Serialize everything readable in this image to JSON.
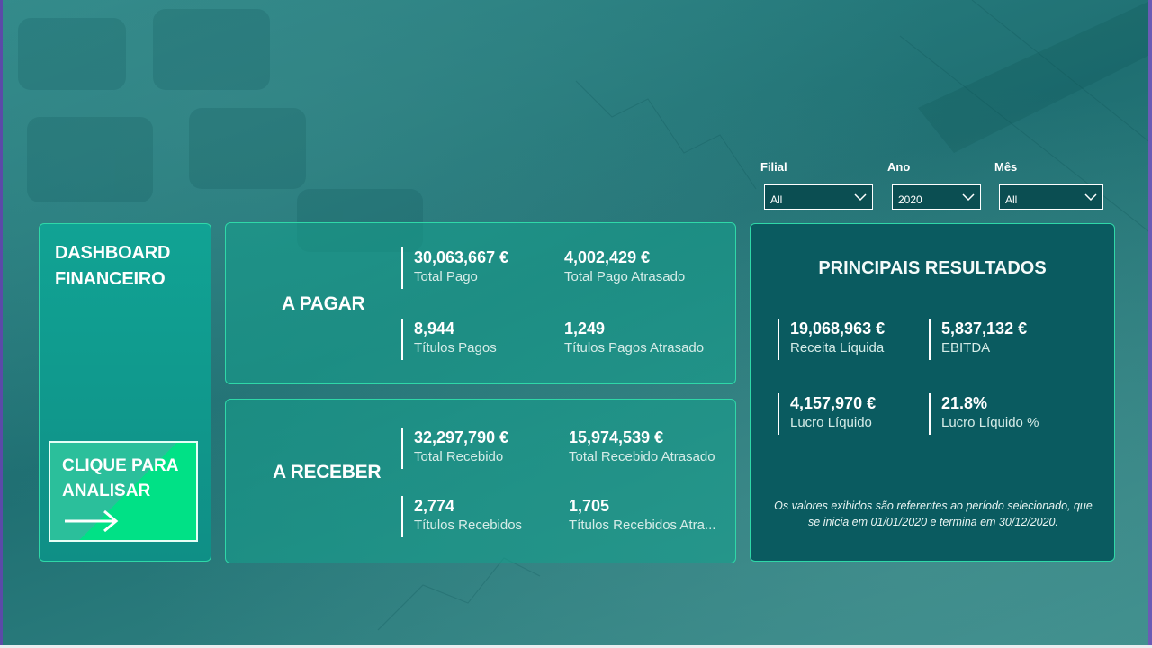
{
  "dashboard": {
    "title_line1": "DASHBOARD",
    "title_line2": "FINANCEIRO"
  },
  "cta": {
    "line1": "CLIQUE PARA",
    "line2": "ANALISAR",
    "icon": "arrow-right-icon"
  },
  "pagar": {
    "label": "A PAGAR",
    "kpis": [
      {
        "value": "30,063,667 €",
        "label": "Total Pago"
      },
      {
        "value": "4,002,429 €",
        "label": "Total Pago Atrasado"
      },
      {
        "value": "8,944",
        "label": "Títulos Pagos"
      },
      {
        "value": "1,249",
        "label": "Títulos Pagos Atrasado"
      }
    ]
  },
  "receber": {
    "label": "A RECEBER",
    "kpis": [
      {
        "value": "32,297,790 €",
        "label": "Total Recebido"
      },
      {
        "value": "15,974,539 €",
        "label": "Total Recebido Atrasado"
      },
      {
        "value": "2,774",
        "label": "Títulos Recebidos"
      },
      {
        "value": "1,705",
        "label": "Títulos Recebidos Atra..."
      }
    ]
  },
  "filters": [
    {
      "label": "Filial",
      "value": "All"
    },
    {
      "label": "Ano",
      "value": "2020"
    },
    {
      "label": "Mês",
      "value": "All"
    }
  ],
  "results": {
    "title": "PRINCIPAIS RESULTADOS",
    "kpis": [
      {
        "value": "19,068,963 €",
        "label": "Receita Líquida"
      },
      {
        "value": "5,837,132 €",
        "label": "EBITDA"
      },
      {
        "value": "4,157,970 €",
        "label": "Lucro Líquido"
      },
      {
        "value": "21.8%",
        "label": "Lucro Líquido %"
      }
    ],
    "footnote_line1": "Os valores exibidos são referentes ao período selecionado, que",
    "footnote_line2": "se inicia em 01/01/2020 e termina em 30/12/2020."
  },
  "colors": {
    "accent_border": "#2fd8a8",
    "cta_green": "#00e186",
    "results_bg": "#0a5b60"
  }
}
